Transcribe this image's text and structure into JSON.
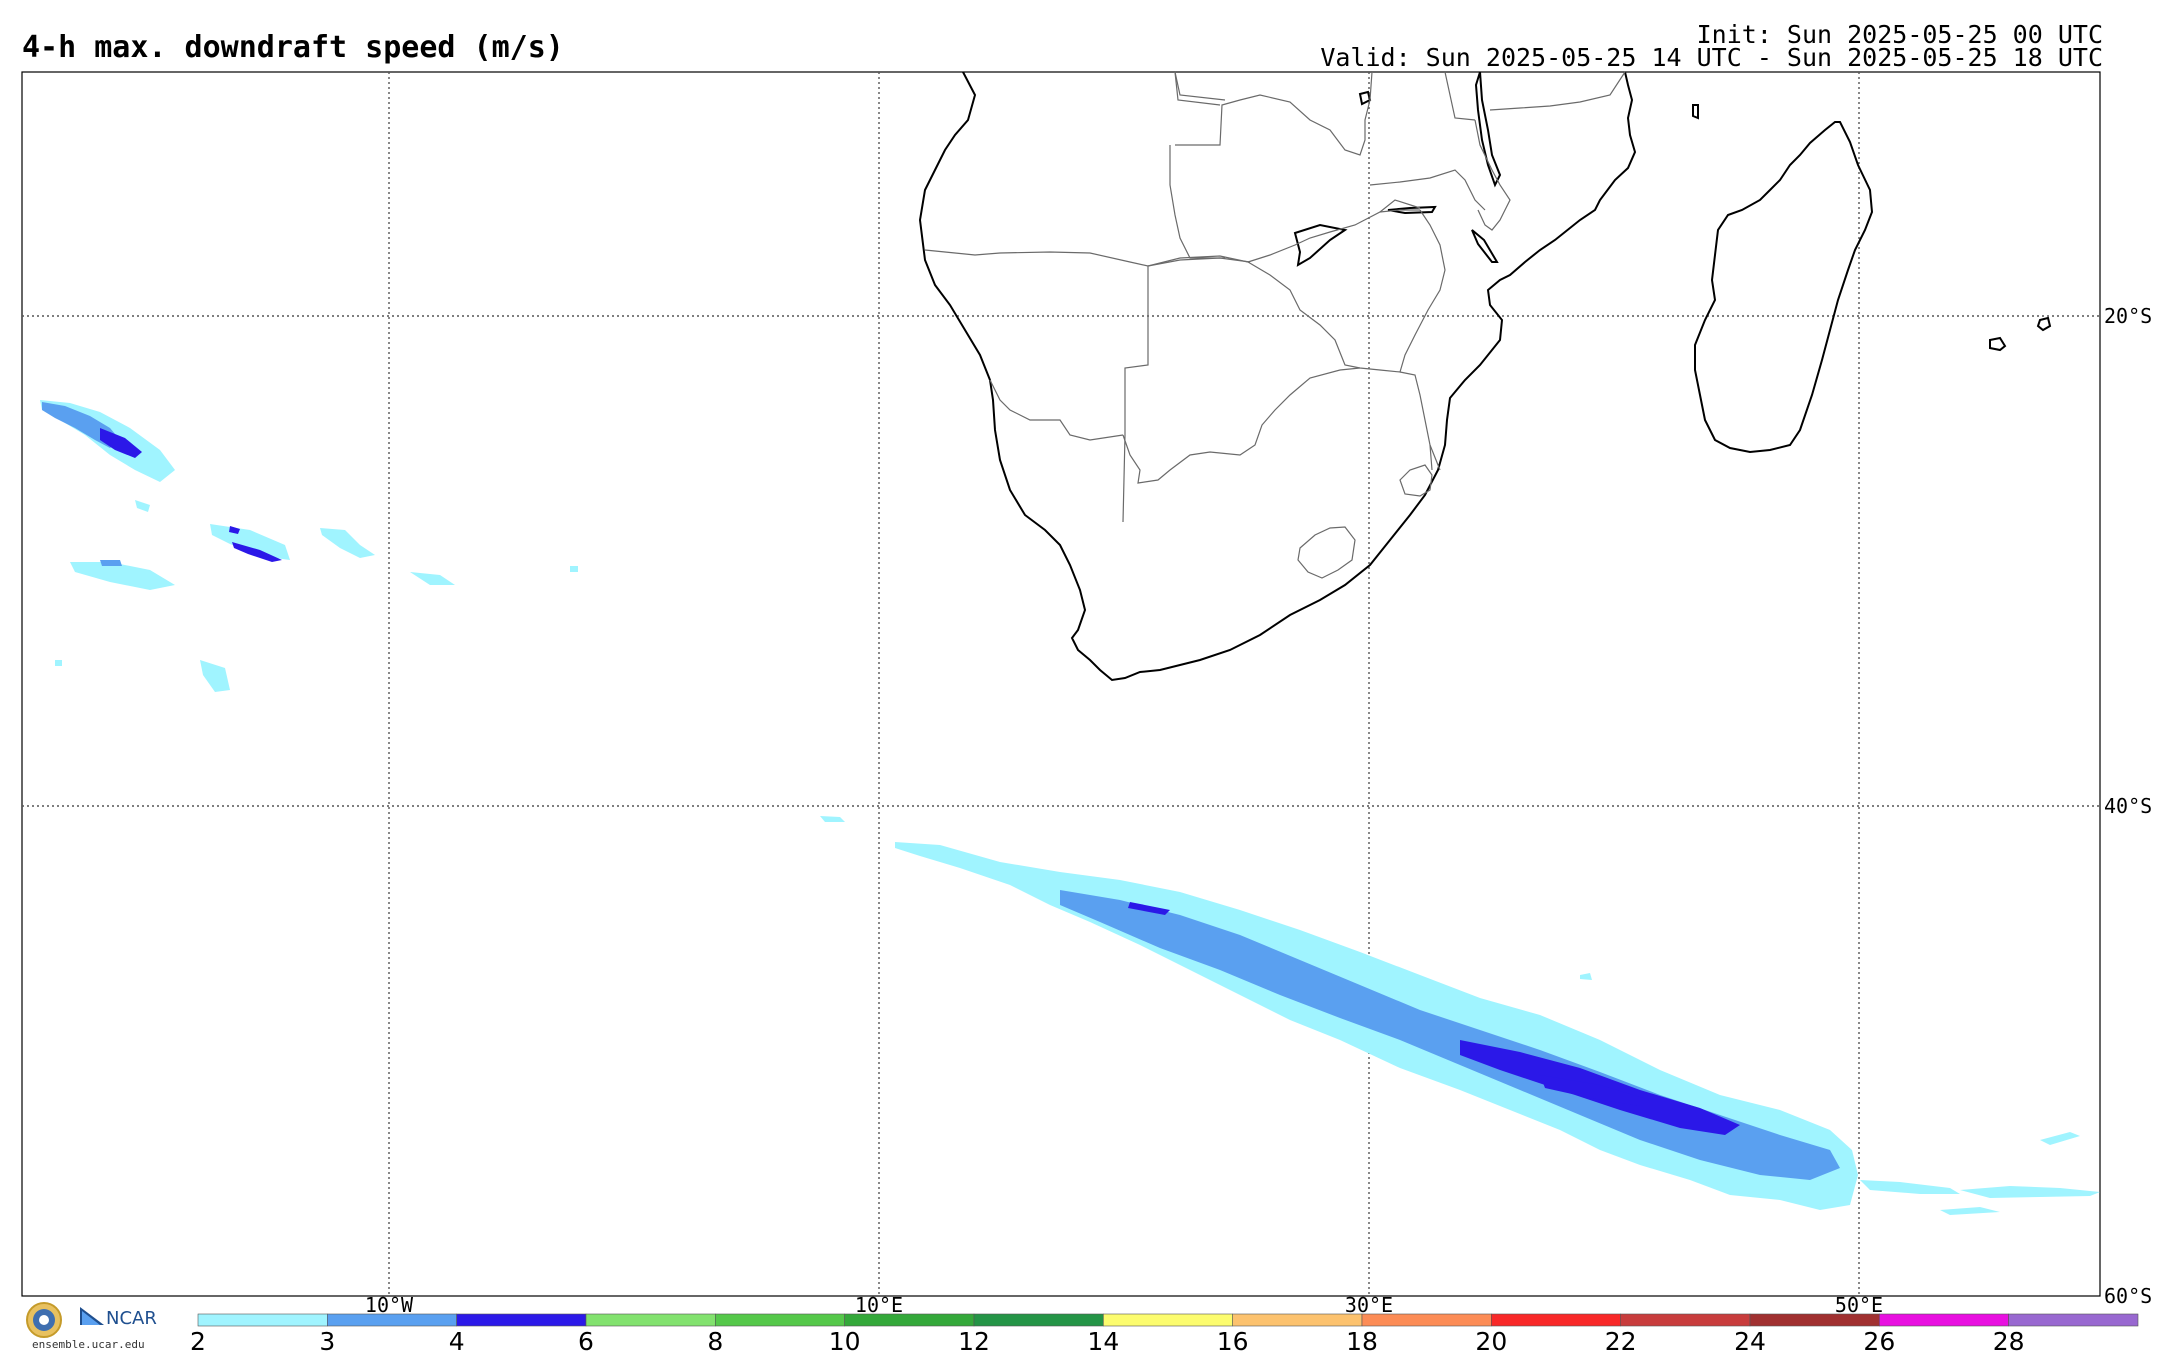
{
  "header": {
    "title": "4-h max. downdraft speed (m/s)",
    "init": "Init: Sun 2025-05-25 00 UTC",
    "valid": "Valid: Sun 2025-05-25 14 UTC - Sun 2025-05-25 18 UTC"
  },
  "map": {
    "projection": "equirectangular",
    "lon_range": [
      -25,
      60
    ],
    "lat_range": [
      -60,
      -10
    ],
    "lat_labels": [
      "20°S",
      "40°S",
      "60°S"
    ],
    "lon_labels": [
      "10°W",
      "10°E",
      "30°E",
      "50°E"
    ],
    "grid": true,
    "grid_style": "dotted"
  },
  "colorbar": {
    "ticks": [
      "2",
      "3",
      "4",
      "6",
      "8",
      "10",
      "12",
      "14",
      "16",
      "18",
      "20",
      "22",
      "24",
      "26",
      "28"
    ],
    "colors": [
      "#a0f4ff",
      "#5aa0f0",
      "#2b18e8",
      "#82e26e",
      "#55c84a",
      "#34a83a",
      "#249446",
      "#fcfc6e",
      "#fcc26e",
      "#fc8c56",
      "#f82828",
      "#c83c3c",
      "#a03030",
      "#e810e0",
      "#9868d0"
    ]
  },
  "logos": {
    "org": "NCAR",
    "url": "ensemble.ucar.edu"
  },
  "colors": {
    "coast": "#000000",
    "border": "#6a6a6a",
    "grid": "#555555"
  }
}
